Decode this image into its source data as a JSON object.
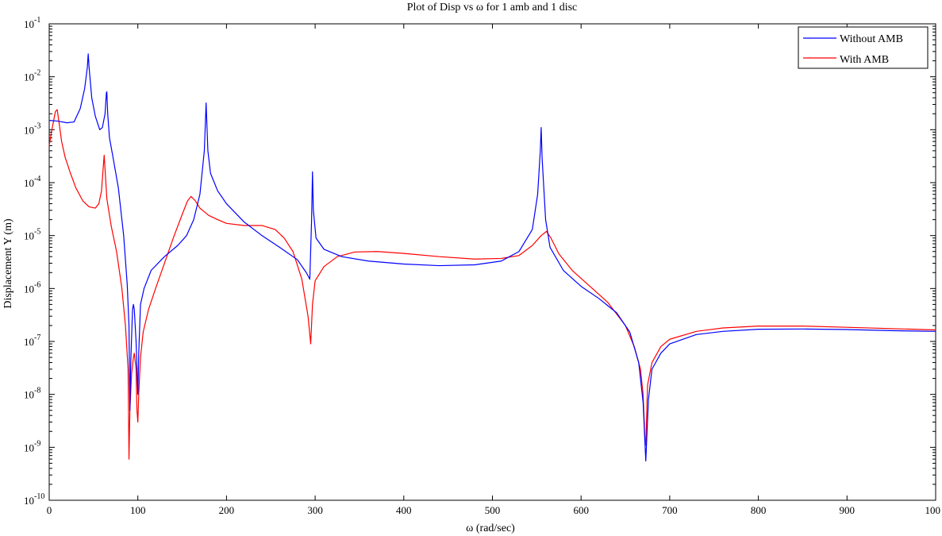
{
  "chart_data": {
    "type": "line",
    "title": "Plot of Disp vs ω for 1 amb and 1 disc",
    "xlabel": "ω (rad/sec)",
    "ylabel": "Displacement Y (m)",
    "xlim": [
      0,
      1000
    ],
    "ylim": [
      1e-10,
      0.1
    ],
    "yscale": "log",
    "x_ticks": [
      0,
      100,
      200,
      300,
      400,
      500,
      600,
      700,
      800,
      900
    ],
    "x_tick_labels": [
      "0",
      "100",
      "200",
      "300",
      "400",
      "500",
      "600",
      "700",
      "800",
      "900"
    ],
    "x_tick_last_label": "100",
    "y_ticks": [
      -10,
      -9,
      -8,
      -7,
      -6,
      -5,
      -4,
      -3,
      -2,
      -1
    ],
    "y_tick_base": "10",
    "grid": false,
    "legend_position": "top-right",
    "series": [
      {
        "name": "Without AMB",
        "color": "#0000ff",
        "points": [
          [
            0,
            0.0015
          ],
          [
            10,
            0.00145
          ],
          [
            20,
            0.00135
          ],
          [
            28,
            0.0014
          ],
          [
            35,
            0.0025
          ],
          [
            40,
            0.006
          ],
          [
            43,
            0.015
          ],
          [
            44,
            0.027
          ],
          [
            45,
            0.015
          ],
          [
            48,
            0.004
          ],
          [
            52,
            0.0018
          ],
          [
            57,
            0.001
          ],
          [
            60,
            0.0011
          ],
          [
            63,
            0.002
          ],
          [
            64.5,
            0.005
          ],
          [
            65,
            0.0052
          ],
          [
            66,
            0.002
          ],
          [
            68,
            0.0007
          ],
          [
            72,
            0.0003
          ],
          [
            78,
            8e-05
          ],
          [
            84,
            1e-05
          ],
          [
            88,
            1.2e-06
          ],
          [
            90,
            2e-07
          ],
          [
            91,
            5e-09
          ],
          [
            92,
            4e-08
          ],
          [
            94,
            4e-07
          ],
          [
            95,
            5e-07
          ],
          [
            96,
            4e-07
          ],
          [
            98,
            1e-07
          ],
          [
            100,
            1e-08
          ],
          [
            101,
            6e-08
          ],
          [
            103,
            5e-07
          ],
          [
            107,
            1e-06
          ],
          [
            115,
            2.2e-06
          ],
          [
            130,
            4e-06
          ],
          [
            145,
            6.5e-06
          ],
          [
            155,
            1e-05
          ],
          [
            163,
            2e-05
          ],
          [
            170,
            6e-05
          ],
          [
            175,
            0.0004
          ],
          [
            177,
            0.0032
          ],
          [
            179,
            0.0004
          ],
          [
            182,
            0.00015
          ],
          [
            190,
            7e-05
          ],
          [
            200,
            4e-05
          ],
          [
            220,
            1.8e-05
          ],
          [
            240,
            1e-05
          ],
          [
            260,
            6e-06
          ],
          [
            280,
            3.5e-06
          ],
          [
            290,
            2e-06
          ],
          [
            294,
            1.5e-06
          ],
          [
            296,
            2e-05
          ],
          [
            297,
            0.00016
          ],
          [
            298,
            3e-05
          ],
          [
            301,
            9e-06
          ],
          [
            310,
            5.5e-06
          ],
          [
            330,
            4e-06
          ],
          [
            360,
            3.3e-06
          ],
          [
            400,
            2.9e-06
          ],
          [
            440,
            2.7e-06
          ],
          [
            480,
            2.8e-06
          ],
          [
            510,
            3.3e-06
          ],
          [
            530,
            5e-06
          ],
          [
            545,
            1.3e-05
          ],
          [
            551,
            6e-05
          ],
          [
            554,
            0.0004
          ],
          [
            555,
            0.0011
          ],
          [
            556,
            0.0003
          ],
          [
            560,
            2e-05
          ],
          [
            565,
            6e-06
          ],
          [
            580,
            2.2e-06
          ],
          [
            600,
            1.1e-06
          ],
          [
            620,
            6.5e-07
          ],
          [
            640,
            3.5e-07
          ],
          [
            655,
            1.5e-07
          ],
          [
            665,
            4e-08
          ],
          [
            670,
            7e-09
          ],
          [
            673,
            5.5e-10
          ],
          [
            676,
            8e-09
          ],
          [
            680,
            3e-08
          ],
          [
            690,
            6e-08
          ],
          [
            700,
            9e-08
          ],
          [
            730,
            1.35e-07
          ],
          [
            760,
            1.55e-07
          ],
          [
            800,
            1.7e-07
          ],
          [
            850,
            1.72e-07
          ],
          [
            900,
            1.68e-07
          ],
          [
            950,
            1.6e-07
          ],
          [
            1000,
            1.55e-07
          ]
        ]
      },
      {
        "name": "With AMB",
        "color": "#ff0000",
        "points": [
          [
            0,
            0.0005
          ],
          [
            3,
            0.001
          ],
          [
            7,
            0.0022
          ],
          [
            9,
            0.0024
          ],
          [
            11,
            0.0014
          ],
          [
            14,
            0.0006
          ],
          [
            18,
            0.0003
          ],
          [
            24,
            0.00015
          ],
          [
            30,
            8e-05
          ],
          [
            38,
            4.5e-05
          ],
          [
            45,
            3.5e-05
          ],
          [
            52,
            3.3e-05
          ],
          [
            56,
            4e-05
          ],
          [
            59,
            7e-05
          ],
          [
            61,
            0.0002
          ],
          [
            62,
            0.00033
          ],
          [
            63,
            0.00018
          ],
          [
            65,
            5e-05
          ],
          [
            70,
            1.5e-05
          ],
          [
            76,
            5e-06
          ],
          [
            82,
            1e-06
          ],
          [
            86,
            2e-07
          ],
          [
            89,
            3e-08
          ],
          [
            90,
            6e-10
          ],
          [
            91,
            5e-09
          ],
          [
            93,
            2.5e-08
          ],
          [
            95,
            5e-08
          ],
          [
            96,
            6e-08
          ],
          [
            98,
            3e-08
          ],
          [
            99,
            5e-09
          ],
          [
            100,
            3e-09
          ],
          [
            101,
            1e-08
          ],
          [
            103,
            5e-08
          ],
          [
            106,
            1.5e-07
          ],
          [
            112,
            4e-07
          ],
          [
            120,
            1e-06
          ],
          [
            130,
            3e-06
          ],
          [
            140,
            9e-06
          ],
          [
            150,
            2.5e-05
          ],
          [
            156,
            4.5e-05
          ],
          [
            160,
            5.5e-05
          ],
          [
            165,
            4.5e-05
          ],
          [
            170,
            3.3e-05
          ],
          [
            180,
            2.4e-05
          ],
          [
            190,
            2e-05
          ],
          [
            200,
            1.7e-05
          ],
          [
            220,
            1.55e-05
          ],
          [
            240,
            1.55e-05
          ],
          [
            255,
            1.3e-05
          ],
          [
            265,
            9e-06
          ],
          [
            275,
            5e-06
          ],
          [
            285,
            1.5e-06
          ],
          [
            292,
            3e-07
          ],
          [
            295,
            9e-08
          ],
          [
            297,
            5e-07
          ],
          [
            300,
            1.4e-06
          ],
          [
            310,
            2.6e-06
          ],
          [
            325,
            4e-06
          ],
          [
            345,
            4.9e-06
          ],
          [
            370,
            5e-06
          ],
          [
            400,
            4.6e-06
          ],
          [
            440,
            4e-06
          ],
          [
            480,
            3.6e-06
          ],
          [
            510,
            3.7e-06
          ],
          [
            530,
            4.2e-06
          ],
          [
            545,
            6.5e-06
          ],
          [
            555,
            1e-05
          ],
          [
            561,
            1.2e-05
          ],
          [
            566,
            9e-06
          ],
          [
            575,
            4.5e-06
          ],
          [
            590,
            2.2e-06
          ],
          [
            610,
            1.1e-06
          ],
          [
            630,
            5.5e-07
          ],
          [
            650,
            2e-07
          ],
          [
            660,
            8e-08
          ],
          [
            667,
            3e-08
          ],
          [
            670,
            1e-08
          ],
          [
            672,
            1.5e-09
          ],
          [
            673,
            1.1e-09
          ],
          [
            675,
            1.5e-08
          ],
          [
            680,
            4e-08
          ],
          [
            690,
            8e-08
          ],
          [
            700,
            1.1e-07
          ],
          [
            730,
            1.55e-07
          ],
          [
            760,
            1.8e-07
          ],
          [
            800,
            1.95e-07
          ],
          [
            850,
            1.95e-07
          ],
          [
            900,
            1.85e-07
          ],
          [
            950,
            1.75e-07
          ],
          [
            1000,
            1.65e-07
          ]
        ]
      }
    ]
  }
}
